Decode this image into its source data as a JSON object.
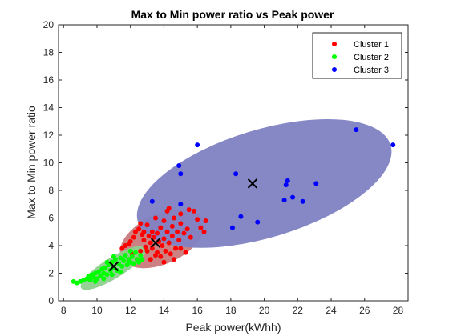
{
  "chart_data": {
    "type": "scatter",
    "title": "Max to Min power ratio vs Peak power",
    "xlabel": "Peak power(kWhh)",
    "ylabel": "Max to Min power ratio",
    "xlim": [
      7.7,
      28.6
    ],
    "ylim": [
      0,
      20
    ],
    "xticks": [
      "8",
      "10",
      "12",
      "14",
      "16",
      "18",
      "20",
      "22",
      "24",
      "26",
      "28"
    ],
    "yticks": [
      "0",
      "2",
      "4",
      "6",
      "8",
      "10",
      "12",
      "14",
      "16",
      "18",
      "20"
    ],
    "grid": false,
    "legend_position": "top-right",
    "series": [
      {
        "name": "Cluster 1",
        "color": "#ff0000",
        "points": [
          [
            11.5,
            3.8
          ],
          [
            11.7,
            4.0
          ],
          [
            11.9,
            4.1
          ],
          [
            12.0,
            4.3
          ],
          [
            12.2,
            4.6
          ],
          [
            12.3,
            5.0
          ],
          [
            12.5,
            5.2
          ],
          [
            12.6,
            5.6
          ],
          [
            12.7,
            4.8
          ],
          [
            12.8,
            4.4
          ],
          [
            12.9,
            3.9
          ],
          [
            13.0,
            3.6
          ],
          [
            13.0,
            5.5
          ],
          [
            13.1,
            4.7
          ],
          [
            13.2,
            4.2
          ],
          [
            13.3,
            3.8
          ],
          [
            13.3,
            5.0
          ],
          [
            13.4,
            4.6
          ],
          [
            13.5,
            6.0
          ],
          [
            13.6,
            3.5
          ],
          [
            13.6,
            4.9
          ],
          [
            13.7,
            4.3
          ],
          [
            13.8,
            5.3
          ],
          [
            13.8,
            3.2
          ],
          [
            13.9,
            4.0
          ],
          [
            14.0,
            5.8
          ],
          [
            14.0,
            4.5
          ],
          [
            14.1,
            3.6
          ],
          [
            14.2,
            5.0
          ],
          [
            14.2,
            6.5
          ],
          [
            14.3,
            4.2
          ],
          [
            14.4,
            3.4
          ],
          [
            14.5,
            5.4
          ],
          [
            14.5,
            4.7
          ],
          [
            14.6,
            6.0
          ],
          [
            14.7,
            3.8
          ],
          [
            14.8,
            5.0
          ],
          [
            14.9,
            4.4
          ],
          [
            15.0,
            5.6
          ],
          [
            15.0,
            6.3
          ],
          [
            15.2,
            4.9
          ],
          [
            15.3,
            3.5
          ],
          [
            15.4,
            5.2
          ],
          [
            15.6,
            4.6
          ],
          [
            15.8,
            6.5
          ],
          [
            16.0,
            5.9
          ],
          [
            16.2,
            5.3
          ],
          [
            16.5,
            5.8
          ],
          [
            12.4,
            3.0
          ],
          [
            12.1,
            3.4
          ],
          [
            14.0,
            2.8
          ],
          [
            14.6,
            3.0
          ],
          [
            15.0,
            3.8
          ],
          [
            13.2,
            3.0
          ],
          [
            12.6,
            3.6
          ],
          [
            12.8,
            5.0
          ],
          [
            13.5,
            3.3
          ],
          [
            14.3,
            6.7
          ],
          [
            15.5,
            6.6
          ],
          [
            16.4,
            5.0
          ]
        ]
      },
      {
        "name": "Cluster 2",
        "color": "#00ff00",
        "points": [
          [
            8.6,
            1.4
          ],
          [
            8.8,
            1.3
          ],
          [
            9.0,
            1.4
          ],
          [
            9.2,
            1.5
          ],
          [
            9.4,
            1.6
          ],
          [
            9.5,
            1.8
          ],
          [
            9.6,
            1.5
          ],
          [
            9.7,
            1.9
          ],
          [
            9.8,
            1.7
          ],
          [
            9.9,
            2.0
          ],
          [
            10.0,
            1.6
          ],
          [
            10.1,
            2.1
          ],
          [
            10.2,
            1.8
          ],
          [
            10.3,
            2.3
          ],
          [
            10.4,
            2.0
          ],
          [
            10.5,
            2.4
          ],
          [
            10.6,
            1.9
          ],
          [
            10.7,
            2.6
          ],
          [
            10.8,
            2.2
          ],
          [
            10.9,
            2.8
          ],
          [
            11.0,
            2.4
          ],
          [
            11.1,
            3.0
          ],
          [
            11.2,
            2.2
          ],
          [
            11.3,
            2.7
          ],
          [
            11.4,
            3.1
          ],
          [
            11.5,
            2.5
          ],
          [
            11.6,
            2.9
          ],
          [
            11.7,
            3.3
          ],
          [
            11.8,
            2.6
          ],
          [
            11.9,
            3.0
          ],
          [
            12.0,
            2.8
          ],
          [
            12.1,
            3.2
          ],
          [
            12.2,
            2.7
          ],
          [
            12.3,
            3.5
          ],
          [
            12.4,
            3.0
          ],
          [
            12.5,
            2.8
          ],
          [
            12.6,
            3.3
          ],
          [
            12.7,
            3.0
          ],
          [
            10.4,
            1.6
          ],
          [
            10.9,
            1.9
          ],
          [
            11.4,
            2.1
          ],
          [
            9.9,
            1.4
          ],
          [
            10.6,
            2.8
          ],
          [
            11.0,
            3.2
          ],
          [
            12.0,
            3.6
          ]
        ]
      },
      {
        "name": "Cluster 3",
        "color": "#0000ff",
        "points": [
          [
            13.3,
            7.2
          ],
          [
            14.9,
            9.8
          ],
          [
            15.0,
            9.2
          ],
          [
            15.0,
            7.0
          ],
          [
            16.0,
            11.3
          ],
          [
            18.1,
            5.3
          ],
          [
            18.3,
            9.2
          ],
          [
            18.6,
            6.1
          ],
          [
            19.6,
            5.7
          ],
          [
            21.2,
            7.3
          ],
          [
            21.3,
            8.4
          ],
          [
            21.4,
            8.7
          ],
          [
            21.7,
            7.5
          ],
          [
            22.3,
            7.2
          ],
          [
            23.1,
            8.5
          ],
          [
            25.5,
            12.4
          ],
          [
            27.7,
            11.3
          ]
        ]
      }
    ],
    "centroids": [
      [
        13.5,
        4.2
      ],
      [
        11.0,
        2.5
      ],
      [
        19.3,
        8.5
      ]
    ],
    "ellipses": [
      {
        "cluster": "Cluster 1",
        "cx": 13.9,
        "cy": 4.5,
        "rx": 2.7,
        "ry": 1.8,
        "angle_deg": 25,
        "color": "#c97b7b"
      },
      {
        "cluster": "Cluster 2",
        "cx": 11.0,
        "cy": 2.4,
        "rx": 2.3,
        "ry": 0.75,
        "angle_deg": 32,
        "color": "#8fcf8f"
      },
      {
        "cluster": "Cluster 3",
        "cx": 20.0,
        "cy": 8.5,
        "rx": 7.9,
        "ry": 3.9,
        "angle_deg": 17,
        "color": "#7f82c3"
      }
    ]
  }
}
